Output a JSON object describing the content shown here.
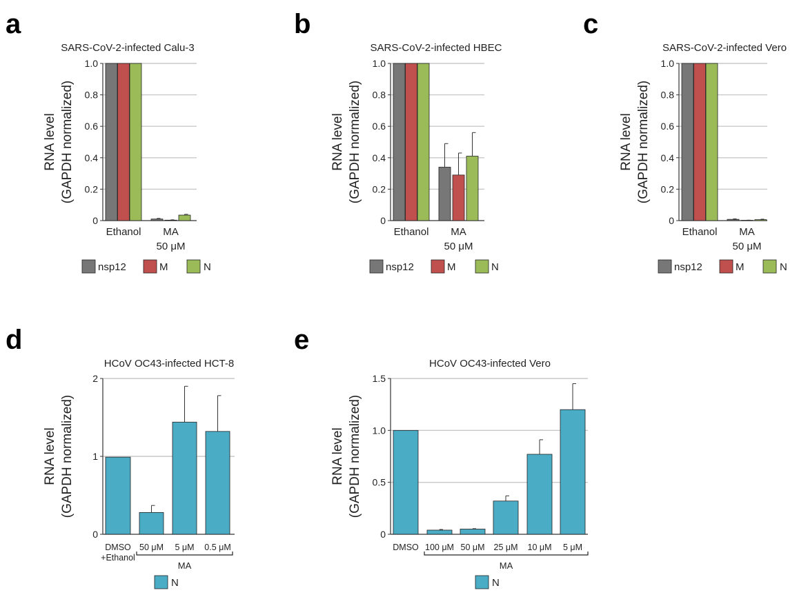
{
  "chart_data": [
    {
      "panel": "a",
      "type": "bar",
      "title": "SARS-CoV-2-infected Calu-3",
      "ylabel": "RNA level",
      "ylabel2": "(GAPDH normalized)",
      "ylim": [
        0,
        1.0
      ],
      "yticks": [
        "0",
        "0.2",
        "0.4",
        "0.6",
        "0.8",
        "1.0"
      ],
      "grid": true,
      "categories": [
        "Ethanol",
        "MA"
      ],
      "category_sublabels": [
        "",
        "50 μM"
      ],
      "series": [
        {
          "name": "nsp12",
          "color": "#777777",
          "values": [
            1.0,
            0.01
          ],
          "errors": [
            0,
            0.004
          ]
        },
        {
          "name": "M",
          "color": "#c0504d",
          "values": [
            1.0,
            0.003
          ],
          "errors": [
            0,
            0.002
          ]
        },
        {
          "name": "N",
          "color": "#9bbb59",
          "values": [
            1.0,
            0.035
          ],
          "errors": [
            0,
            0.005
          ]
        }
      ]
    },
    {
      "panel": "b",
      "type": "bar",
      "title": "SARS-CoV-2-infected HBEC",
      "ylabel": "RNA level",
      "ylabel2": "(GAPDH normalized)",
      "ylim": [
        0,
        1.0
      ],
      "yticks": [
        "0",
        "0.2",
        "0.4",
        "0.6",
        "0.8",
        "1.0"
      ],
      "grid": true,
      "categories": [
        "Ethanol",
        "MA"
      ],
      "category_sublabels": [
        "",
        "50 μM"
      ],
      "series": [
        {
          "name": "nsp12",
          "color": "#777777",
          "values": [
            1.0,
            0.34
          ],
          "errors": [
            0,
            0.15
          ]
        },
        {
          "name": "M",
          "color": "#c0504d",
          "values": [
            1.0,
            0.29
          ],
          "errors": [
            0,
            0.14
          ]
        },
        {
          "name": "N",
          "color": "#9bbb59",
          "values": [
            1.0,
            0.41
          ],
          "errors": [
            0,
            0.15
          ]
        }
      ]
    },
    {
      "panel": "c",
      "type": "bar",
      "title": "SARS-CoV-2-infected Vero",
      "ylabel": "RNA level",
      "ylabel2": "(GAPDH normalized)",
      "ylim": [
        0,
        1.0
      ],
      "yticks": [
        "0",
        "0.2",
        "0.4",
        "0.6",
        "0.8",
        "1.0"
      ],
      "grid": true,
      "categories": [
        "Ethanol",
        "MA"
      ],
      "category_sublabels": [
        "",
        "50 μM"
      ],
      "series": [
        {
          "name": "nsp12",
          "color": "#777777",
          "values": [
            1.0,
            0.008
          ],
          "errors": [
            0,
            0.003
          ]
        },
        {
          "name": "M",
          "color": "#c0504d",
          "values": [
            1.0,
            0.002
          ],
          "errors": [
            0,
            0.001
          ]
        },
        {
          "name": "N",
          "color": "#9bbb59",
          "values": [
            1.0,
            0.006
          ],
          "errors": [
            0,
            0.003
          ]
        }
      ]
    },
    {
      "panel": "d",
      "type": "bar",
      "title": "HCoV OC43-infected HCT-8",
      "ylabel": "RNA level",
      "ylabel2": "(GAPDH normalized)",
      "ylim": [
        0,
        2
      ],
      "yticks": [
        "0",
        "1",
        "2"
      ],
      "grid": true,
      "categories": [
        "DMSO",
        "50 μM",
        "5 μM",
        "0.5 μM"
      ],
      "category_sublabels": [
        "+Ethanol",
        "",
        "",
        ""
      ],
      "group_bracket": {
        "label": "MA",
        "from": 1,
        "to": 3
      },
      "series": [
        {
          "name": "N",
          "color": "#4bacc6",
          "values": [
            0.99,
            0.28,
            1.44,
            1.32
          ],
          "errors": [
            0,
            0.09,
            0.46,
            0.46
          ]
        }
      ]
    },
    {
      "panel": "e",
      "type": "bar",
      "title": "HCoV OC43-infected Vero",
      "ylabel": "RNA level",
      "ylabel2": "(GAPDH normalized)",
      "ylim": [
        0,
        1.5
      ],
      "yticks": [
        "0",
        "0.5",
        "1.0",
        "1.5"
      ],
      "grid": true,
      "categories": [
        "DMSO",
        "100 μM",
        "50 μM",
        "25 μM",
        "10 μM",
        "5 μM"
      ],
      "category_sublabels": [
        "",
        "",
        "",
        "",
        "",
        ""
      ],
      "group_bracket": {
        "label": "MA",
        "from": 1,
        "to": 5
      },
      "series": [
        {
          "name": "N",
          "color": "#4bacc6",
          "values": [
            1.0,
            0.04,
            0.05,
            0.32,
            0.77,
            1.2
          ],
          "errors": [
            0,
            0.006,
            0.004,
            0.05,
            0.14,
            0.25
          ]
        }
      ]
    }
  ]
}
